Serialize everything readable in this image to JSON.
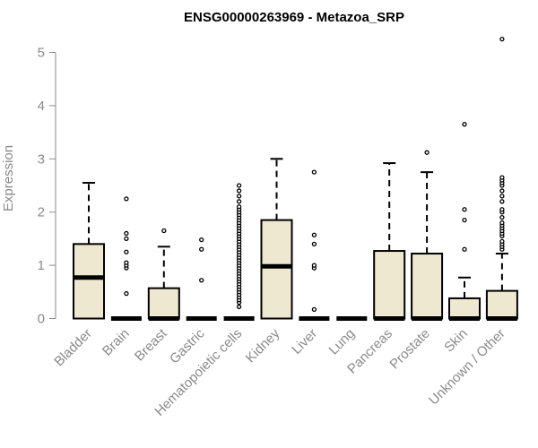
{
  "chart_data": {
    "type": "boxplot",
    "title": "ENSG00000263969 - Metazoa_SRP",
    "xlabel": "",
    "ylabel": "Expression",
    "ylim": [
      0,
      5.25
    ],
    "yticks": [
      0,
      1,
      2,
      3,
      4,
      5
    ],
    "grid": false,
    "box_fill": "#efe8d0",
    "box_stroke": "#000000",
    "axis_color": "#8a8a8a",
    "categories": [
      "Bladder",
      "Brain",
      "Breast",
      "Gastric",
      "Hematopoietic cells",
      "Kidney",
      "Liver",
      "Lung",
      "Pancreas",
      "Prostate",
      "Skin",
      "Unknown / Other"
    ],
    "boxes": [
      {
        "q1": 0.0,
        "median": 0.77,
        "q3": 1.4,
        "whisker_low": 0.0,
        "whisker_high": 2.55,
        "outliers": []
      },
      {
        "q1": 0.0,
        "median": 0.0,
        "q3": 0.0,
        "whisker_low": 0.0,
        "whisker_high": 0.0,
        "outliers": [
          0.47,
          0.95,
          1.0,
          1.05,
          1.25,
          1.5,
          1.6,
          2.25
        ]
      },
      {
        "q1": 0.0,
        "median": 0.0,
        "q3": 0.57,
        "whisker_low": 0.0,
        "whisker_high": 1.35,
        "outliers": [
          1.65
        ]
      },
      {
        "q1": 0.0,
        "median": 0.0,
        "q3": 0.0,
        "whisker_low": 0.0,
        "whisker_high": 0.0,
        "outliers": [
          0.72,
          1.3,
          1.48
        ]
      },
      {
        "q1": 0.0,
        "median": 0.0,
        "q3": 0.0,
        "whisker_low": 0.0,
        "whisker_high": 0.0,
        "outliers": [
          0.22,
          0.3,
          0.35,
          0.4,
          0.45,
          0.5,
          0.55,
          0.6,
          0.65,
          0.7,
          0.75,
          0.8,
          0.85,
          0.9,
          0.95,
          1.0,
          1.05,
          1.1,
          1.15,
          1.2,
          1.25,
          1.3,
          1.35,
          1.4,
          1.45,
          1.5,
          1.55,
          1.6,
          1.65,
          1.7,
          1.75,
          1.8,
          1.85,
          1.9,
          1.95,
          2.0,
          2.05,
          2.1,
          2.2,
          2.3,
          2.4,
          2.5
        ]
      },
      {
        "q1": 0.0,
        "median": 0.98,
        "q3": 1.85,
        "whisker_low": 0.0,
        "whisker_high": 3.0,
        "outliers": []
      },
      {
        "q1": 0.0,
        "median": 0.0,
        "q3": 0.0,
        "whisker_low": 0.0,
        "whisker_high": 0.0,
        "outliers": [
          0.17,
          0.95,
          1.0,
          1.4,
          1.57,
          2.75
        ]
      },
      {
        "q1": 0.0,
        "median": 0.0,
        "q3": 0.0,
        "whisker_low": 0.0,
        "whisker_high": 0.0,
        "outliers": []
      },
      {
        "q1": 0.0,
        "median": 0.0,
        "q3": 1.27,
        "whisker_low": 0.0,
        "whisker_high": 2.92,
        "outliers": []
      },
      {
        "q1": 0.0,
        "median": 0.0,
        "q3": 1.22,
        "whisker_low": 0.0,
        "whisker_high": 2.75,
        "outliers": [
          3.12
        ]
      },
      {
        "q1": 0.0,
        "median": 0.0,
        "q3": 0.38,
        "whisker_low": 0.0,
        "whisker_high": 0.77,
        "outliers": [
          1.3,
          1.85,
          2.05,
          3.65
        ]
      },
      {
        "q1": 0.0,
        "median": 0.0,
        "q3": 0.52,
        "whisker_low": 0.0,
        "whisker_high": 1.22,
        "outliers": [
          1.3,
          1.35,
          1.4,
          1.45,
          1.55,
          1.6,
          1.65,
          1.7,
          1.75,
          1.8,
          1.9,
          2.0,
          2.05,
          2.2,
          2.3,
          2.4,
          2.5,
          2.55,
          2.6,
          2.65,
          5.25
        ]
      }
    ]
  }
}
